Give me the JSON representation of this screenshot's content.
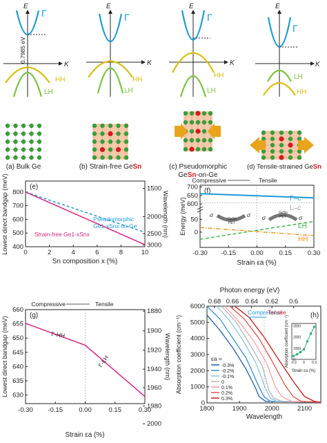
{
  "colors": {
    "gamma": "#1d9ad6",
    "hh": "#d8bf10",
    "lh": "#7cc23d",
    "pink": "#d6247f",
    "orange": "#e8961e",
    "green_dash": "#35b24a",
    "grey": "#9a9a9a",
    "lattice_bg": "#f6c9a8",
    "ge_atom": "#3a9c3a",
    "sn_atom": "#d71920",
    "arrow": "#e9a41c"
  },
  "top": {
    "E_label": "E",
    "K_label": "K",
    "gap_value": "0.7985 eV",
    "gamma_label": "Γ",
    "hh_label": "HH",
    "lh_label": "LH",
    "captions": [
      {
        "pre": "(a) Bulk Ge",
        "sn": "",
        "post": ""
      },
      {
        "pre": "(b) Strain-free Ge",
        "sn": "Sn",
        "post": ""
      },
      {
        "pre": "(c) Pseudomorphic",
        "sn": "",
        "post": ""
      },
      {
        "pre": "Ge",
        "sn": "Sn",
        "post": "-on-Ge"
      },
      {
        "pre": "(d) Tensile-strained Ge",
        "sn": "Sn",
        "post": ""
      }
    ]
  },
  "panel_e": {
    "tag": "(e)",
    "ylabel": "Lowest direct bandgap (meV)",
    "ylabel_right": "Wavelength (nm)",
    "xlabel": "Sn composition x (%)",
    "left_ticks": [
      "400",
      "500",
      "600",
      "700",
      "800"
    ],
    "right_ticks": [
      "1500",
      "2000",
      "2500",
      "3000"
    ],
    "x_ticks": [
      "0",
      "2",
      "4",
      "6",
      "8",
      "10"
    ],
    "label_pseudo_1": "Pseudomorphic",
    "label_pseudo_2": "Ge1-xSnx on Ge",
    "label_free": "Strain-free Ge1-xSnx"
  },
  "panel_f": {
    "tag": "(f)",
    "ylabel": "Energy (meV)",
    "xlabel": "Strain εa (%)",
    "compressive": "Compressive",
    "tensile": "Tensile",
    "y_ticks": [
      "0",
      "50",
      "600",
      "650",
      "700"
    ],
    "x_ticks": [
      "-0.30",
      "-0.15",
      "0.00",
      "0.15",
      "0.30"
    ],
    "label_gc": "Γ–c",
    "label_lc": "L–c",
    "label_lh": "LH",
    "label_hh": "HH",
    "sigma": "σ",
    "film": "GeSn",
    "substrate": "PET"
  },
  "panel_g": {
    "tag": "(g)",
    "ylabel": "Lowest direct bandgap (meV)",
    "ylabel_right": "Wavelength (nm)",
    "xlabel": "Strain εa (%)",
    "compressive": "Compressive",
    "tensile": "Tensile",
    "left_ticks": [
      "630",
      "635",
      "640",
      "645",
      "650",
      "655",
      "660"
    ],
    "right_ticks": [
      "1880",
      "1900",
      "1920",
      "1940",
      "1960",
      "1980",
      "2000"
    ],
    "x_ticks": [
      "-0.30",
      "-0.15",
      "0.00",
      "0.15",
      "0.30"
    ],
    "label_ghh": "Γ-HH",
    "label_glh": "Γ-LH"
  },
  "panel_h": {
    "tag": "(h)",
    "ylabel": "Absorption coefficient (cm⁻¹)",
    "xlabel": "Wavelength",
    "top_label": "Photon energy (eV)",
    "top_ticks": [
      "0.68",
      "0.66",
      "0.64",
      "0.62",
      "0.6"
    ],
    "y_ticks": [
      "0",
      "1000",
      "2000",
      "3000",
      "4000",
      "5000",
      "6000"
    ],
    "x_ticks": [
      "1800",
      "1900",
      "2000",
      "2100"
    ],
    "compressive": "Compressive",
    "tensile": "Tensile",
    "legend_title": "εa =",
    "legend": [
      "-0.3%",
      "-0.2%",
      "-0.1%",
      "0",
      "0.1%",
      "0.2%",
      "0.3%"
    ],
    "legend_colors": [
      "#1f5fa8",
      "#3a8fd0",
      "#8dc3e8",
      "#b5b5b5",
      "#f2a1a1",
      "#e0504d",
      "#c01818"
    ],
    "inset_ylabel": "Absorption coefficient (cm⁻¹)",
    "inset_xlabel": "Strain εa (%)",
    "inset_y_ticks": [
      "0",
      "1000",
      "2000",
      "3000"
    ],
    "inset_x_ticks": [
      "-0.3",
      "0",
      "0.3"
    ]
  },
  "chart_data": [
    {
      "type": "line",
      "title": "(e)",
      "xlabel": "Sn composition x (%)",
      "ylabel": "Lowest direct bandgap (meV)",
      "xlim": [
        0,
        10
      ],
      "ylim": [
        400,
        880
      ],
      "series": [
        {
          "name": "Pseudomorphic Ge1-xSnx on Ge",
          "x": [
            0,
            10
          ],
          "values": [
            800,
            505
          ]
        },
        {
          "name": "Strain-free Ge1-xSnx",
          "x": [
            0,
            10
          ],
          "values": [
            800,
            415
          ]
        }
      ]
    },
    {
      "type": "line",
      "title": "(f)",
      "xlabel": "Strain εa (%)",
      "ylabel": "Energy (meV)",
      "xlim": [
        -0.3,
        0.3
      ],
      "series": [
        {
          "name": "Γ–c",
          "x": [
            -0.3,
            0.3
          ],
          "values": [
            660,
            636
          ]
        },
        {
          "name": "L–c",
          "x": [
            -0.3,
            0.3
          ],
          "values": [
            606,
            606
          ]
        },
        {
          "name": "LH",
          "x": [
            -0.3,
            0.3
          ],
          "values": [
            -28,
            42
          ]
        },
        {
          "name": "HH",
          "x": [
            -0.3,
            0.3
          ],
          "values": [
            18,
            -14
          ]
        }
      ]
    },
    {
      "type": "line",
      "title": "(g)",
      "xlabel": "Strain εa (%)",
      "ylabel": "Lowest direct bandgap (meV)",
      "xlim": [
        -0.3,
        0.3
      ],
      "ylim": [
        627,
        660
      ],
      "series": [
        {
          "name": "Γ-HH",
          "x": [
            -0.3,
            0.0
          ],
          "values": [
            655.2,
            647.5
          ]
        },
        {
          "name": "Γ-LH",
          "x": [
            0.0,
            0.3
          ],
          "values": [
            647.5,
            629.5
          ]
        }
      ]
    },
    {
      "type": "line",
      "title": "(h)",
      "xlabel": "Wavelength",
      "ylabel": "Absorption coefficient (cm⁻¹)",
      "xlim": [
        1800,
        2150
      ],
      "ylim": [
        0,
        6000
      ],
      "series": [
        {
          "name": "-0.3%",
          "x": [
            1800,
            1840,
            1880,
            1920,
            1950,
            1960,
            1980
          ],
          "values": [
            5450,
            4500,
            3400,
            2100,
            900,
            400,
            100
          ]
        },
        {
          "name": "-0.2%",
          "x": [
            1800,
            1840,
            1880,
            1920,
            1960,
            1975,
            1995
          ],
          "values": [
            6000,
            5200,
            4000,
            2800,
            1000,
            400,
            100
          ]
        },
        {
          "name": "-0.1%",
          "x": [
            1830,
            1870,
            1910,
            1950,
            1980,
            1995,
            2015
          ],
          "values": [
            6000,
            5100,
            3900,
            2500,
            900,
            300,
            100
          ]
        },
        {
          "name": "0",
          "x": [
            1845,
            1890,
            1930,
            1970,
            1990,
            2005,
            2030
          ],
          "values": [
            6000,
            5000,
            3700,
            2300,
            800,
            300,
            100
          ]
        },
        {
          "name": "0.1%",
          "x": [
            1855,
            1900,
            1945,
            1985,
            2010,
            2030,
            2060
          ],
          "values": [
            6000,
            5000,
            3800,
            2400,
            1000,
            400,
            100
          ]
        },
        {
          "name": "0.2%",
          "x": [
            1870,
            1915,
            1960,
            2000,
            2040,
            2065,
            2090
          ],
          "values": [
            6000,
            5200,
            4000,
            2600,
            1100,
            400,
            100
          ]
        },
        {
          "name": "0.3%",
          "x": [
            1885,
            1930,
            1975,
            2020,
            2070,
            2100,
            2130
          ],
          "values": [
            6000,
            5300,
            4100,
            2700,
            1200,
            400,
            100
          ]
        }
      ],
      "inset": {
        "x": [
          -0.3,
          -0.2,
          -0.1,
          0.0,
          0.1,
          0.2,
          0.3
        ],
        "values": [
          300,
          450,
          650,
          900,
          1600,
          2300,
          2900
        ]
      }
    }
  ]
}
